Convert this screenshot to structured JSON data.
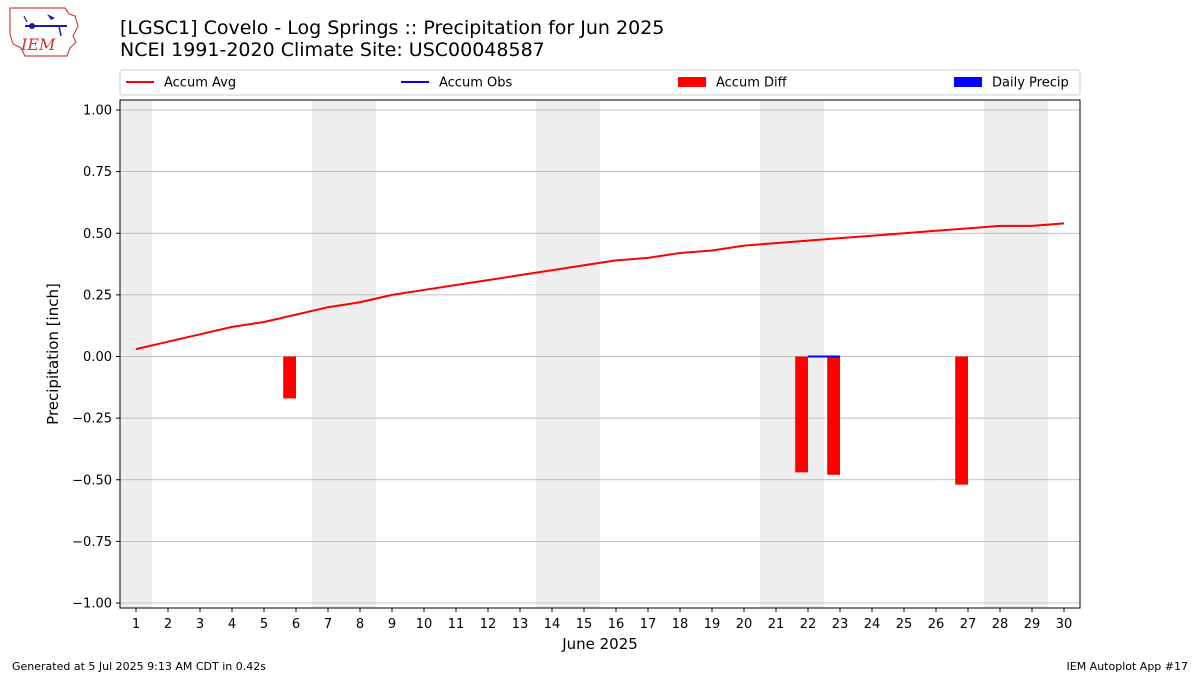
{
  "header": {
    "title_line1": "[LGSC1] Covelo - Log Springs :: Precipitation for Jun 2025",
    "title_line2": "NCEI 1991-2020 Climate Site: USC00048587",
    "logo_text": "IEM"
  },
  "footer": {
    "left": "Generated at 5 Jul 2025 9:13 AM CDT in 0.42s",
    "right": "IEM Autoplot App #17"
  },
  "colors": {
    "accum_avg": "#ff0000",
    "accum_obs": "#0000ff",
    "accum_diff": "#ff0000",
    "daily_precip": "#0000ff",
    "weekend_shade": "#eeeeee",
    "grid": "#b0b0b0"
  },
  "chart_data": {
    "type": "bar",
    "xlabel": "June 2025",
    "ylabel": "Precipitation [inch]",
    "xlim": [
      0.5,
      30.5
    ],
    "ylim": [
      -1.0,
      1.0
    ],
    "x": [
      1,
      2,
      3,
      4,
      5,
      6,
      7,
      8,
      9,
      10,
      11,
      12,
      13,
      14,
      15,
      16,
      17,
      18,
      19,
      20,
      21,
      22,
      23,
      24,
      25,
      26,
      27,
      28,
      29,
      30
    ],
    "x_tick_labels": [
      "1",
      "2",
      "3",
      "4",
      "5",
      "6",
      "7",
      "8",
      "9",
      "10",
      "11",
      "12",
      "13",
      "14",
      "15",
      "16",
      "17",
      "18",
      "19",
      "20",
      "21",
      "22",
      "23",
      "24",
      "25",
      "26",
      "27",
      "28",
      "29",
      "30"
    ],
    "y_ticks": [
      -1.0,
      -0.75,
      -0.5,
      -0.25,
      0.0,
      0.25,
      0.5,
      0.75,
      1.0
    ],
    "y_tick_labels": [
      "−1.00",
      "−0.75",
      "−0.50",
      "−0.25",
      "0.00",
      "0.25",
      "0.50",
      "0.75",
      "1.00"
    ],
    "grid": "horizontal",
    "legend_position": "top",
    "weekend_days": [
      1,
      7,
      8,
      14,
      15,
      21,
      22,
      28,
      29
    ],
    "series": [
      {
        "name": "Accum Avg",
        "type": "line",
        "values": [
          0.03,
          0.06,
          0.09,
          0.12,
          0.14,
          0.17,
          0.2,
          0.22,
          0.25,
          0.27,
          0.29,
          0.31,
          0.33,
          0.35,
          0.37,
          0.39,
          0.4,
          0.42,
          0.43,
          0.45,
          0.46,
          0.47,
          0.48,
          0.49,
          0.5,
          0.51,
          0.52,
          0.53,
          0.53,
          0.54
        ]
      },
      {
        "name": "Accum Obs",
        "type": "line",
        "x": [
          22,
          23
        ],
        "values": [
          0.0,
          0.0
        ]
      },
      {
        "name": "Accum Diff",
        "type": "bar",
        "x": [
          6,
          22,
          23,
          27
        ],
        "values": [
          -0.17,
          -0.47,
          -0.48,
          -0.52
        ]
      },
      {
        "name": "Daily Precip",
        "type": "bar",
        "x": [],
        "values": []
      }
    ]
  }
}
